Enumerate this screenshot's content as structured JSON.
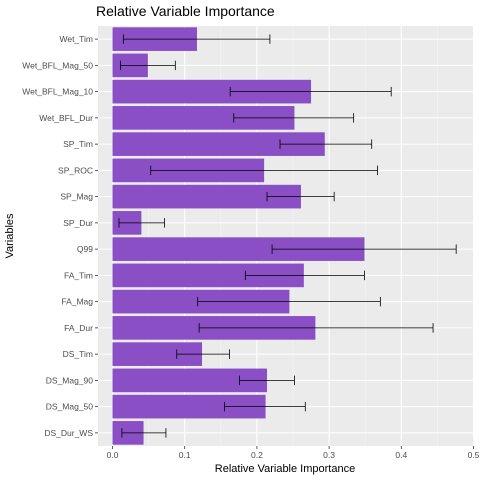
{
  "chart_data": {
    "type": "bar",
    "orientation": "horizontal",
    "title": "Relative Variable Importance",
    "xlabel": "Relative Variable Importance",
    "ylabel": "Variables",
    "xlim": [
      0,
      0.5
    ],
    "xticks": [
      "0.0",
      "0.1",
      "0.2",
      "0.3",
      "0.4",
      "0.5"
    ],
    "xtick_values": [
      0,
      0.1,
      0.2,
      0.3,
      0.4,
      0.5
    ],
    "grid": true,
    "error_bars": true,
    "bar_color": "#8a4fc4",
    "panel_color": "#ebebeb",
    "categories": [
      "Wet_Tim",
      "Wet_BFL_Mag_50",
      "Wet_BFL_Mag_10",
      "Wet_BFL_Dur",
      "SP_Tim",
      "SP_ROC",
      "SP_Mag",
      "SP_Dur",
      "Q99",
      "FA_Tim",
      "FA_Mag",
      "FA_Dur",
      "DS_Tim",
      "DS_Mag_90",
      "DS_Mag_50",
      "DS_Dur_WS"
    ],
    "values": [
      0.117,
      0.049,
      0.275,
      0.252,
      0.294,
      0.21,
      0.261,
      0.04,
      0.349,
      0.265,
      0.245,
      0.281,
      0.124,
      0.214,
      0.212,
      0.043
    ],
    "error_low": [
      0.015,
      0.011,
      0.163,
      0.168,
      0.232,
      0.053,
      0.214,
      0.009,
      0.221,
      0.184,
      0.118,
      0.12,
      0.089,
      0.176,
      0.155,
      0.013
    ],
    "error_high": [
      0.218,
      0.087,
      0.386,
      0.334,
      0.359,
      0.367,
      0.307,
      0.072,
      0.476,
      0.349,
      0.371,
      0.444,
      0.162,
      0.252,
      0.267,
      0.074
    ]
  }
}
